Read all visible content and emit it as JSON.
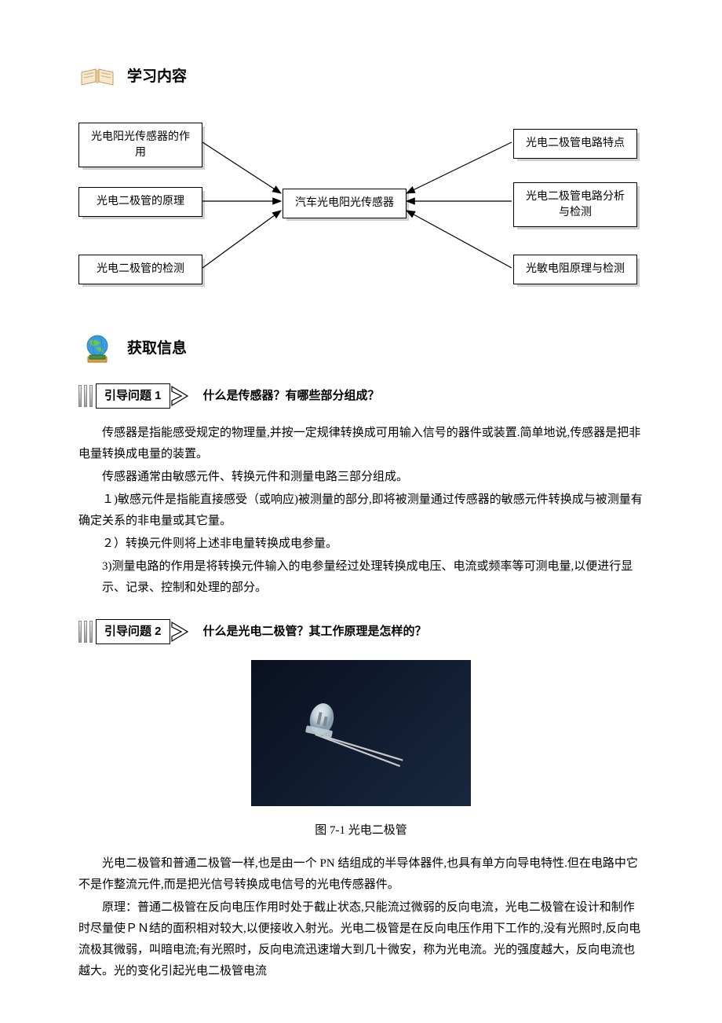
{
  "sections": {
    "study": {
      "title": "学习内容"
    },
    "info": {
      "title": "获取信息"
    }
  },
  "diagram": {
    "center": "汽车光电阳光传感器",
    "left": [
      "光电阳光传感器的作\n用",
      "光电二极管的原理",
      "光电二极管的检测"
    ],
    "right": [
      "光电二极管电路特点",
      "光电二极管电路分析\n与检测",
      "光敏电阻原理与检测"
    ],
    "box_border": "#000000",
    "shadow_color": "#d0d0d0",
    "arrow_color": "#000000"
  },
  "questions": {
    "q1": {
      "label": "引导问题 1",
      "text": "什么是传感器？有哪些部分组成？"
    },
    "q2": {
      "label": "引导问题 2",
      "text": "什么是光电二极管？其工作原理是怎样的？"
    }
  },
  "paragraphs": {
    "p1": "传感器是指能感受规定的物理量,并按一定规律转换成可用输入信号的器件或装置.简单地说,传感器是把非电量转换成电量的装置。",
    "p2": "传感器通常由敏感元件、转换元件和测量电路三部分组成。",
    "p3": "１)敏感元件是指能直接感受（或响应)被测量的部分,即将被测量通过传感器的敏感元件转换成与被测量有确定关系的非电量或其它量。",
    "p4": "２）转换元件则将上述非电量转换成电参量。",
    "p5": "3)测量电路的作用是将转换元件输入的电参量经过处理转换成电压、电流或频率等可测电量,以便进行显示、记录、控制和处理的部分。",
    "p6": "光电二极管和普通二极管一样,也是由一个 PN 结组成的半导体器件,也具有单方向导电特性.但在电路中它不是作整流元件,而是把光信号转换成电信号的光电传感器件。",
    "p7": "原理：普通二极管在反向电压作用时处于截止状态,只能流过微弱的反向电流，光电二极管在设计和制作时尽量使ＰＮ结的面积相对较大,以便接收入射光。光电二极管是在反向电压作用下工作的,没有光照时,反向电流极其微弱，叫暗电流;有光照时，反向电流迅速增大到几十微安，称为光电流。光的强度越大，反向电流也越大。光的变化引起光电二极管电流"
  },
  "figure": {
    "caption": "图 7-1  光电二极管",
    "bg_gradient_start": "#0a1020",
    "bg_gradient_end": "#182840"
  },
  "colors": {
    "text": "#000000",
    "background": "#ffffff"
  }
}
